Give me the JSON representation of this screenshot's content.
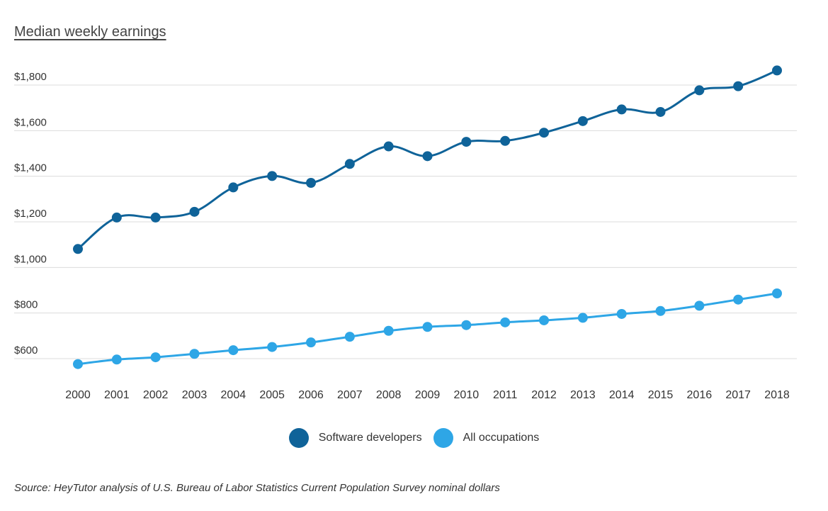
{
  "chart_data": {
    "type": "line",
    "title": "Median weekly earnings",
    "categories": [
      "2000",
      "2001",
      "2002",
      "2003",
      "2004",
      "2005",
      "2006",
      "2007",
      "2008",
      "2009",
      "2010",
      "2011",
      "2012",
      "2013",
      "2014",
      "2015",
      "2016",
      "2017",
      "2018"
    ],
    "series": [
      {
        "name": "Software developers",
        "color": "#0f6399",
        "values": [
          1081,
          1219,
          1219,
          1244,
          1351,
          1401,
          1371,
          1454,
          1531,
          1488,
          1551,
          1555,
          1591,
          1642,
          1693,
          1682,
          1777,
          1795,
          1864
        ]
      },
      {
        "name": "All occupations",
        "color": "#2ea6e6",
        "values": [
          576,
          596,
          606,
          621,
          637,
          651,
          671,
          696,
          722,
          739,
          747,
          759,
          768,
          779,
          796,
          809,
          832,
          859,
          886
        ]
      }
    ],
    "yticks": [
      600,
      800,
      1000,
      1200,
      1400,
      1600,
      1800
    ],
    "ytick_labels": [
      "$600",
      "$800",
      "$1,000",
      "$1,200",
      "$1,400",
      "$1,600",
      "$1,800"
    ],
    "ylim": [
      600,
      1800
    ],
    "grid": true,
    "legend_position": "bottom-center",
    "source": "Source: HeyTutor analysis of U.S. Bureau of Labor Statistics Current Population Survey nominal dollars"
  }
}
